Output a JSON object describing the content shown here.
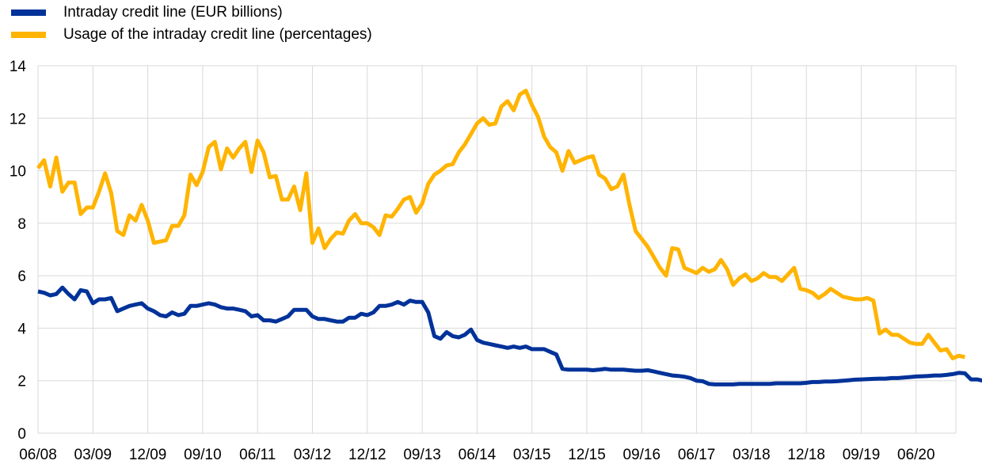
{
  "legend": {
    "items": [
      {
        "label": "Intraday credit line (EUR billions)",
        "color": "#003299"
      },
      {
        "label": "Usage of the intraday credit line (percentages)",
        "color": "#FFB400"
      }
    ]
  },
  "chart_data": {
    "type": "line",
    "title": "",
    "xlabel": "",
    "ylabel": "",
    "ylim": [
      0,
      14
    ],
    "yticks": [
      0,
      2,
      4,
      6,
      8,
      10,
      12,
      14
    ],
    "grid": true,
    "legend_position": "top-left",
    "x_start": "06/08",
    "x_step": "month",
    "x_tick_labels": [
      "06/08",
      "03/09",
      "12/09",
      "09/10",
      "06/11",
      "03/12",
      "12/12",
      "09/13",
      "06/14",
      "03/15",
      "12/15",
      "09/16",
      "06/17",
      "03/18",
      "12/18",
      "09/19",
      "06/20"
    ],
    "series": [
      {
        "name": "Intraday credit line (EUR billions)",
        "color": "#003299",
        "values": [
          5.4,
          5.35,
          5.25,
          5.3,
          5.55,
          5.3,
          5.1,
          5.45,
          5.4,
          4.95,
          5.1,
          5.1,
          5.15,
          4.65,
          4.75,
          4.85,
          4.9,
          4.95,
          4.75,
          4.65,
          4.5,
          4.45,
          4.6,
          4.5,
          4.55,
          4.85,
          4.85,
          4.9,
          4.95,
          4.9,
          4.8,
          4.75,
          4.75,
          4.7,
          4.65,
          4.45,
          4.5,
          4.3,
          4.3,
          4.25,
          4.35,
          4.45,
          4.7,
          4.7,
          4.7,
          4.45,
          4.35,
          4.35,
          4.3,
          4.25,
          4.25,
          4.4,
          4.4,
          4.55,
          4.5,
          4.6,
          4.85,
          4.85,
          4.9,
          5.0,
          4.9,
          5.05,
          5.0,
          5.0,
          4.6,
          3.7,
          3.6,
          3.85,
          3.7,
          3.65,
          3.75,
          3.95,
          3.55,
          3.45,
          3.4,
          3.35,
          3.3,
          3.25,
          3.3,
          3.25,
          3.3,
          3.2,
          3.2,
          3.2,
          3.1,
          3.0,
          2.45,
          2.42,
          2.42,
          2.42,
          2.42,
          2.4,
          2.42,
          2.45,
          2.42,
          2.42,
          2.42,
          2.4,
          2.38,
          2.38,
          2.4,
          2.35,
          2.3,
          2.25,
          2.2,
          2.18,
          2.15,
          2.1,
          2.0,
          1.98,
          1.88,
          1.86,
          1.86,
          1.86,
          1.86,
          1.88,
          1.88,
          1.88,
          1.88,
          1.88,
          1.88,
          1.9,
          1.9,
          1.9,
          1.9,
          1.9,
          1.92,
          1.95,
          1.95,
          1.97,
          1.97,
          1.98,
          2.0,
          2.02,
          2.04,
          2.05,
          2.06,
          2.07,
          2.08,
          2.08,
          2.1,
          2.1,
          2.12,
          2.14,
          2.16,
          2.17,
          2.18,
          2.2,
          2.2,
          2.22,
          2.25,
          2.3,
          2.28,
          2.05,
          2.05,
          2.0,
          1.85,
          1.85,
          1.85
        ]
      },
      {
        "name": "Usage of the intraday credit line (percentages)",
        "color": "#FFB400",
        "values": [
          10.1,
          10.4,
          9.4,
          10.5,
          9.2,
          9.55,
          9.55,
          8.35,
          8.6,
          8.6,
          9.2,
          9.9,
          9.15,
          7.7,
          7.55,
          8.3,
          8.1,
          8.7,
          8.1,
          7.25,
          7.3,
          7.35,
          7.9,
          7.9,
          8.3,
          9.85,
          9.45,
          9.95,
          10.9,
          11.1,
          10.05,
          10.85,
          10.5,
          10.85,
          11.1,
          9.95,
          11.15,
          10.7,
          9.75,
          9.8,
          8.9,
          8.9,
          9.4,
          8.5,
          9.9,
          7.25,
          7.8,
          7.05,
          7.4,
          7.65,
          7.6,
          8.1,
          8.35,
          8.0,
          8.0,
          7.85,
          7.55,
          8.3,
          8.25,
          8.55,
          8.9,
          9.0,
          8.4,
          8.75,
          9.5,
          9.85,
          10.0,
          10.2,
          10.25,
          10.7,
          11.0,
          11.4,
          11.8,
          12.0,
          11.75,
          11.8,
          12.45,
          12.65,
          12.3,
          12.9,
          13.05,
          12.5,
          12.05,
          11.3,
          10.9,
          10.7,
          10.0,
          10.75,
          10.3,
          10.4,
          10.5,
          10.55,
          9.85,
          9.7,
          9.3,
          9.4,
          9.85,
          8.7,
          7.7,
          7.4,
          7.1,
          6.7,
          6.3,
          6.0,
          7.05,
          7.0,
          6.3,
          6.2,
          6.1,
          6.3,
          6.15,
          6.25,
          6.6,
          6.25,
          5.65,
          5.9,
          6.05,
          5.8,
          5.9,
          6.1,
          5.95,
          5.95,
          5.8,
          6.05,
          6.3,
          5.5,
          5.45,
          5.35,
          5.15,
          5.3,
          5.5,
          5.35,
          5.2,
          5.15,
          5.1,
          5.1,
          5.15,
          5.05,
          3.8,
          3.95,
          3.75,
          3.75,
          3.6,
          3.45,
          3.4,
          3.4,
          3.75,
          3.45,
          3.15,
          3.2,
          2.85,
          2.95,
          2.9
        ]
      }
    ]
  }
}
